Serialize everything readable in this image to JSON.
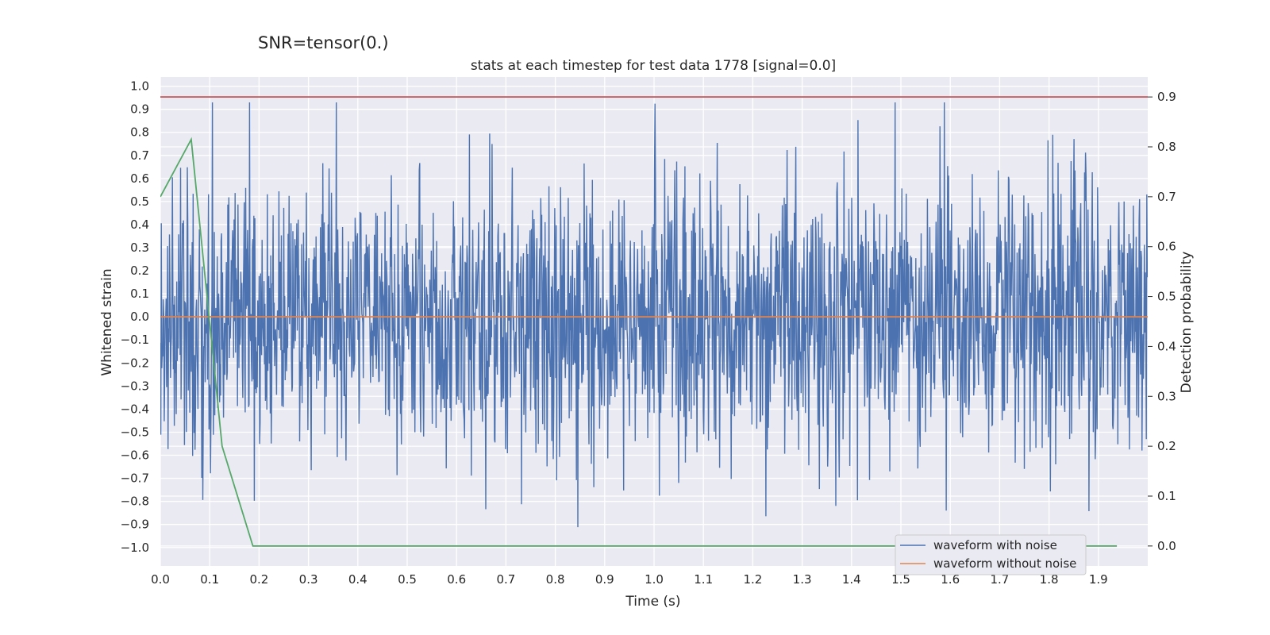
{
  "suptitle": "SNR=tensor(0.)",
  "chart_data": {
    "type": "line",
    "title": "stats at each timestep for test data 1778 [signal=0.0]",
    "xlabel": "Time (s)",
    "ylabel": "Whitened strain",
    "ylabel_right": "Detection probability",
    "xlim": [
      0.0,
      2.0
    ],
    "ylim": [
      -1.08,
      1.04
    ],
    "ylim_right": [
      -0.04,
      0.94
    ],
    "grid": true,
    "legend_placement": "lower-right",
    "x_ticks": [
      "0.0",
      "0.1",
      "0.2",
      "0.3",
      "0.4",
      "0.5",
      "0.6",
      "0.7",
      "0.8",
      "0.9",
      "1.0",
      "1.1",
      "1.2",
      "1.3",
      "1.4",
      "1.5",
      "1.6",
      "1.7",
      "1.8",
      "1.9"
    ],
    "y_ticks": [
      "1.0",
      "0.9",
      "0.8",
      "0.7",
      "0.6",
      "0.5",
      "0.4",
      "0.3",
      "0.2",
      "0.1",
      "0.0",
      "−0.1",
      "−0.2",
      "−0.3",
      "−0.4",
      "−0.5",
      "−0.6",
      "−0.7",
      "−0.8",
      "−0.9",
      "−1.0"
    ],
    "y_ticks_right": [
      "0.9",
      "0.8",
      "0.7",
      "0.6",
      "0.5",
      "0.4",
      "0.3",
      "0.2",
      "0.1",
      "0.0"
    ],
    "series": [
      {
        "name": "waveform with noise",
        "color": "#4c72b0",
        "axis": "left",
        "kind": "noise",
        "x_range": [
          0.0,
          2.0
        ],
        "num_points": 2048,
        "ymin": -1.0,
        "ymax": 0.93
      },
      {
        "name": "waveform without noise",
        "color": "#dd8452",
        "axis": "left",
        "x": [
          0.0,
          2.0
        ],
        "y": [
          0.0,
          0.0
        ]
      },
      {
        "color": "#55a868",
        "axis": "right",
        "x": [
          0.0,
          0.0625,
          0.125,
          0.1875,
          0.25,
          0.5,
          0.75,
          1.0,
          1.25,
          1.5,
          1.75,
          1.9375
        ],
        "y": [
          0.7,
          0.815,
          0.2,
          0.0,
          0.0,
          0.0,
          0.0,
          0.0,
          0.0,
          0.0,
          0.0,
          0.0
        ]
      },
      {
        "color": "#c44e52",
        "axis": "right",
        "kind": "threshold",
        "x": [
          0.0,
          2.0
        ],
        "y": [
          0.9,
          0.9
        ]
      }
    ]
  }
}
